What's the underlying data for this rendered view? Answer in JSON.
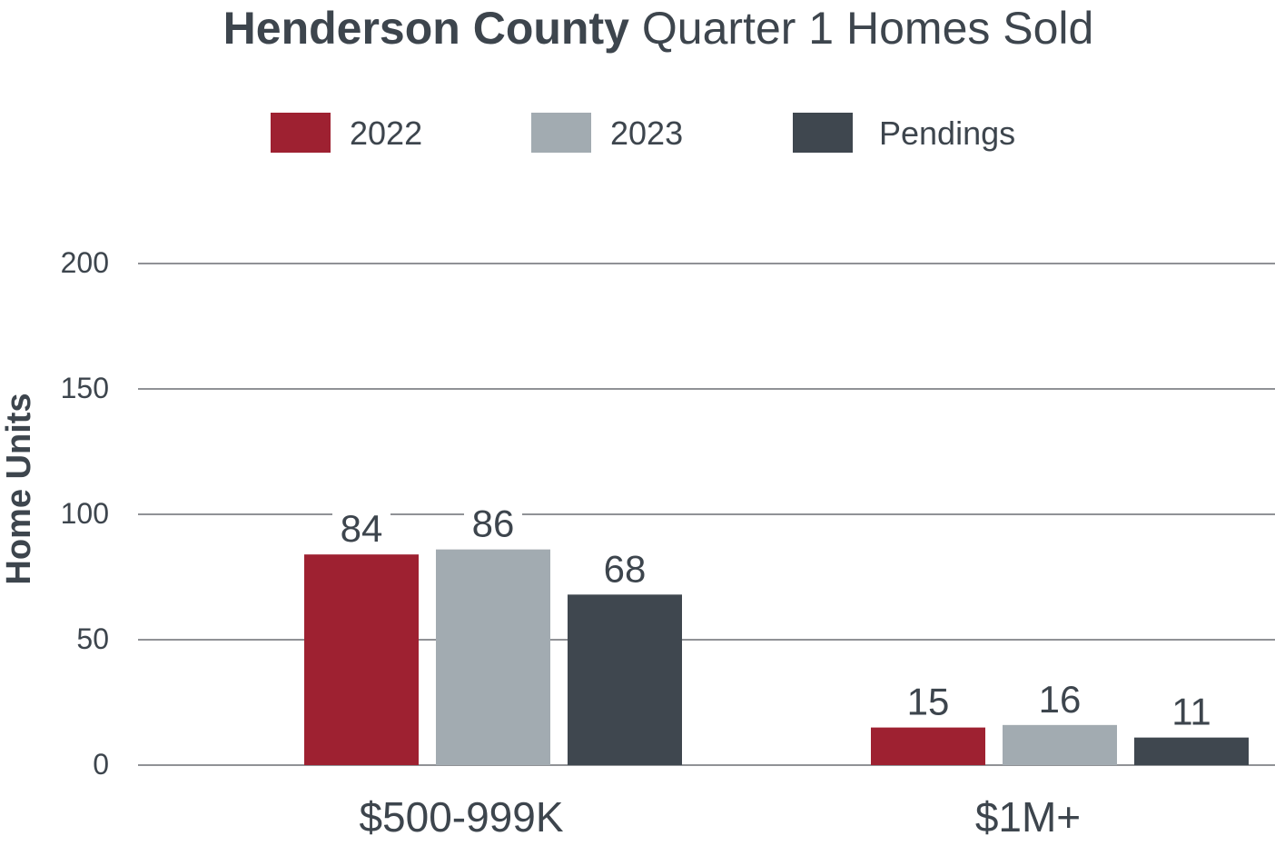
{
  "chart_data": {
    "type": "bar",
    "title_bold": "Henderson County",
    "title_rest": "Quarter 1 Homes Sold",
    "ylabel": "Home Units",
    "xlabel": "",
    "ylim": [
      0,
      200
    ],
    "yticks": [
      0,
      50,
      100,
      150,
      200
    ],
    "ytick_labels": [
      "0",
      "50",
      "100",
      "150",
      "200"
    ],
    "categories": [
      "$500-999K",
      "$1M+"
    ],
    "series": [
      {
        "name": "2022",
        "color": "#9e2131",
        "values": [
          84,
          15
        ],
        "labels": [
          "84",
          "15"
        ]
      },
      {
        "name": "2023",
        "color": "#a2abb1",
        "values": [
          86,
          16
        ],
        "labels": [
          "86",
          "16"
        ]
      },
      {
        "name": "Pendings",
        "color": "#3f474f",
        "values": [
          68,
          11
        ],
        "labels": [
          "68",
          "11"
        ]
      }
    ],
    "legend_position": "top-center",
    "grid": true,
    "gridline_color": "#6b6f73",
    "text_color": "#3d454d"
  }
}
